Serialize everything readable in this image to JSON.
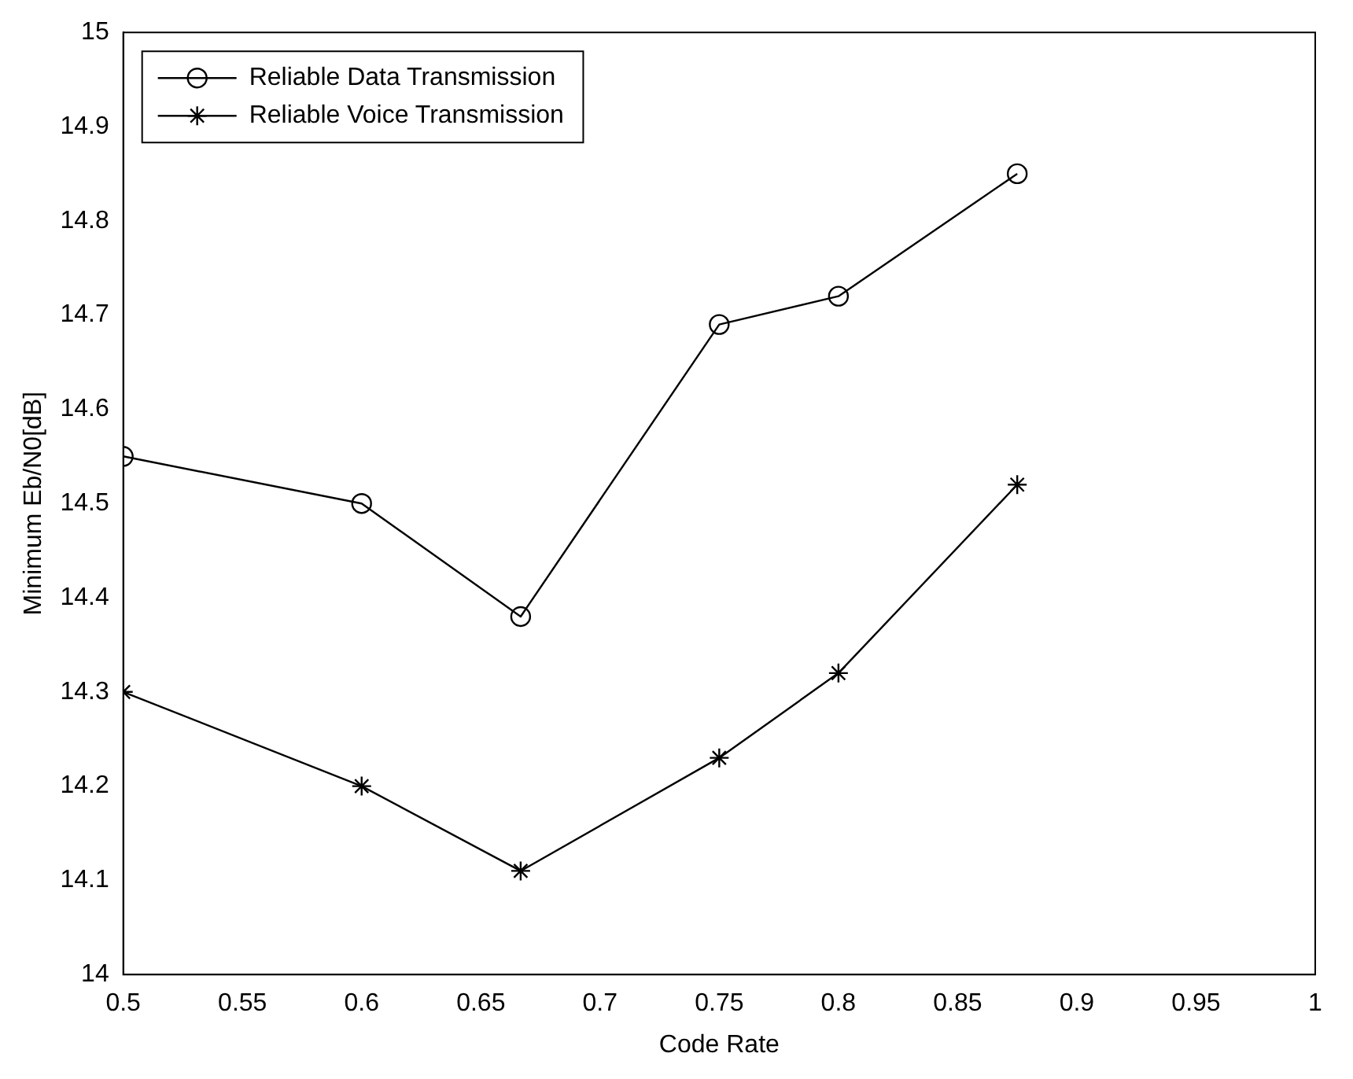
{
  "chart_data": {
    "type": "line",
    "xlabel": "Code Rate",
    "ylabel": "Minimum Eb/N0[dB]",
    "x": [
      0.5,
      0.6,
      0.6667,
      0.75,
      0.8,
      0.875
    ],
    "series": [
      {
        "name": "Reliable Data Transmission",
        "color": "#000000",
        "marker": "circle",
        "values": [
          14.55,
          14.5,
          14.38,
          14.69,
          14.72,
          14.85
        ]
      },
      {
        "name": "Reliable Voice Transmission",
        "color": "#000000",
        "marker": "cross",
        "values": [
          14.3,
          14.2,
          14.11,
          14.23,
          14.32,
          14.52
        ]
      }
    ],
    "xlim": [
      0.5,
      1
    ],
    "xticks": [
      0.5,
      0.55,
      0.6,
      0.65,
      0.7,
      0.75,
      0.8,
      0.85,
      0.9,
      0.95,
      1
    ],
    "ylim": [
      14,
      15
    ],
    "yticks": [
      14,
      14.1,
      14.2,
      14.3,
      14.4,
      14.5,
      14.6,
      14.7,
      14.8,
      14.9,
      15
    ],
    "grid": false,
    "legend": "top left",
    "line_style": "solid"
  }
}
